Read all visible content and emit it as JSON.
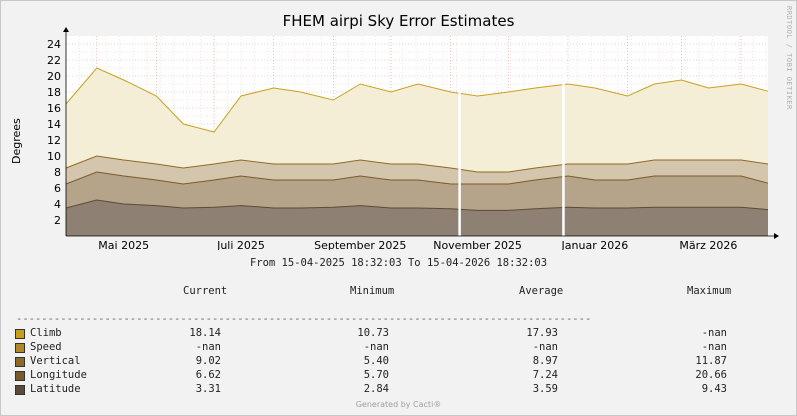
{
  "chart_data": {
    "type": "area",
    "title": "FHEM airpi Sky Error Estimates",
    "ylabel": "Degrees",
    "ylim": [
      0,
      25
    ],
    "yticks": [
      2,
      4,
      6,
      8,
      10,
      12,
      14,
      16,
      18,
      20,
      22,
      24
    ],
    "grid": true,
    "x_tick_labels": [
      "Mai 2025",
      "Juli 2025",
      "September 2025",
      "November 2025",
      "Januar 2026",
      "März 2026"
    ],
    "x_range": [
      "2025-04-15",
      "2026-04-15"
    ],
    "range_text": "From 15-04-2025 18:32:03 To 15-04-2026 18:32:03",
    "watermark": "RRDTOOL / TOBI OETIKER",
    "gaps": [
      [
        "2025-11-05",
        "2025-11-06"
      ],
      [
        "2025-12-29",
        "2025-12-30"
      ]
    ],
    "series": [
      {
        "name": "Climb",
        "color": "#c8a020",
        "x": [
          "2025-04-15",
          "2025-05-01",
          "2025-05-15",
          "2025-06-01",
          "2025-06-15",
          "2025-07-01",
          "2025-07-15",
          "2025-08-01",
          "2025-08-15",
          "2025-09-01",
          "2025-09-15",
          "2025-10-01",
          "2025-10-15",
          "2025-11-01",
          "2025-11-15",
          "2025-12-01",
          "2025-12-15",
          "2026-01-01",
          "2026-01-15",
          "2026-02-01",
          "2026-02-15",
          "2026-03-01",
          "2026-03-15",
          "2026-04-01",
          "2026-04-15"
        ],
        "y": [
          16.5,
          21.0,
          19.5,
          17.5,
          14.0,
          13.0,
          17.5,
          18.5,
          18.0,
          17.0,
          19.0,
          18.0,
          19.0,
          18.0,
          17.5,
          18.0,
          18.5,
          19.0,
          18.5,
          17.5,
          19.0,
          19.5,
          18.5,
          19.0,
          18.1
        ]
      },
      {
        "name": "Speed",
        "color": "#b08828",
        "x": [],
        "y": []
      },
      {
        "name": "Vertical",
        "color": "#8e6a25",
        "x": [
          "2025-04-15",
          "2025-05-01",
          "2025-05-15",
          "2025-06-01",
          "2025-06-15",
          "2025-07-01",
          "2025-07-15",
          "2025-08-01",
          "2025-08-15",
          "2025-09-01",
          "2025-09-15",
          "2025-10-01",
          "2025-10-15",
          "2025-11-01",
          "2025-11-15",
          "2025-12-01",
          "2025-12-15",
          "2026-01-01",
          "2026-01-15",
          "2026-02-01",
          "2026-02-15",
          "2026-03-01",
          "2026-03-15",
          "2026-04-01",
          "2026-04-15"
        ],
        "y": [
          8.5,
          10.0,
          9.5,
          9.0,
          8.5,
          9.0,
          9.5,
          9.0,
          9.0,
          9.0,
          9.5,
          9.0,
          9.0,
          8.5,
          8.0,
          8.0,
          8.5,
          9.0,
          9.0,
          9.0,
          9.5,
          9.5,
          9.5,
          9.5,
          9.0
        ]
      },
      {
        "name": "Longitude",
        "color": "#7a5a2a",
        "x": [
          "2025-04-15",
          "2025-05-01",
          "2025-05-15",
          "2025-06-01",
          "2025-06-15",
          "2025-07-01",
          "2025-07-15",
          "2025-08-01",
          "2025-08-15",
          "2025-09-01",
          "2025-09-15",
          "2025-10-01",
          "2025-10-15",
          "2025-11-01",
          "2025-11-15",
          "2025-12-01",
          "2025-12-15",
          "2026-01-01",
          "2026-01-15",
          "2026-02-01",
          "2026-02-15",
          "2026-03-01",
          "2026-03-15",
          "2026-04-01",
          "2026-04-15"
        ],
        "y": [
          6.5,
          8.0,
          7.5,
          7.0,
          6.5,
          7.0,
          7.5,
          7.0,
          7.0,
          7.0,
          7.5,
          7.0,
          7.0,
          6.5,
          6.5,
          6.5,
          7.0,
          7.5,
          7.0,
          7.0,
          7.5,
          7.5,
          7.5,
          7.5,
          6.6
        ]
      },
      {
        "name": "Latitude",
        "color": "#5e4a36",
        "x": [
          "2025-04-15",
          "2025-05-01",
          "2025-05-15",
          "2025-06-01",
          "2025-06-15",
          "2025-07-01",
          "2025-07-15",
          "2025-08-01",
          "2025-08-15",
          "2025-09-01",
          "2025-09-15",
          "2025-10-01",
          "2025-10-15",
          "2025-11-01",
          "2025-11-15",
          "2025-12-01",
          "2025-12-15",
          "2026-01-01",
          "2026-01-15",
          "2026-02-01",
          "2026-02-15",
          "2026-03-01",
          "2026-03-15",
          "2026-04-01",
          "2026-04-15"
        ],
        "y": [
          3.5,
          4.5,
          4.0,
          3.8,
          3.5,
          3.6,
          3.8,
          3.5,
          3.5,
          3.6,
          3.8,
          3.5,
          3.5,
          3.4,
          3.2,
          3.2,
          3.4,
          3.6,
          3.5,
          3.5,
          3.6,
          3.6,
          3.6,
          3.6,
          3.3
        ]
      }
    ]
  },
  "legend_table": {
    "headers": [
      "Current",
      "Minimum",
      "Average",
      "Maximum"
    ],
    "rows": [
      {
        "name": "Climb",
        "color": "#c8a020",
        "current": "18.14",
        "minimum": "10.73",
        "average": "17.93",
        "maximum": "-nan"
      },
      {
        "name": "Speed",
        "color": "#b08828",
        "current": "-nan",
        "minimum": "-nan",
        "average": "-nan",
        "maximum": "-nan"
      },
      {
        "name": "Vertical",
        "color": "#8e6a25",
        "current": "9.02",
        "minimum": "5.40",
        "average": "8.97",
        "maximum": "11.87"
      },
      {
        "name": "Longitude",
        "color": "#7a5a2a",
        "current": "6.62",
        "minimum": "5.70",
        "average": "7.24",
        "maximum": "20.66"
      },
      {
        "name": "Latitude",
        "color": "#5e4a36",
        "current": "3.31",
        "minimum": "2.84",
        "average": "3.59",
        "maximum": "9.43"
      }
    ]
  },
  "footer": "Generated by Cacti®"
}
